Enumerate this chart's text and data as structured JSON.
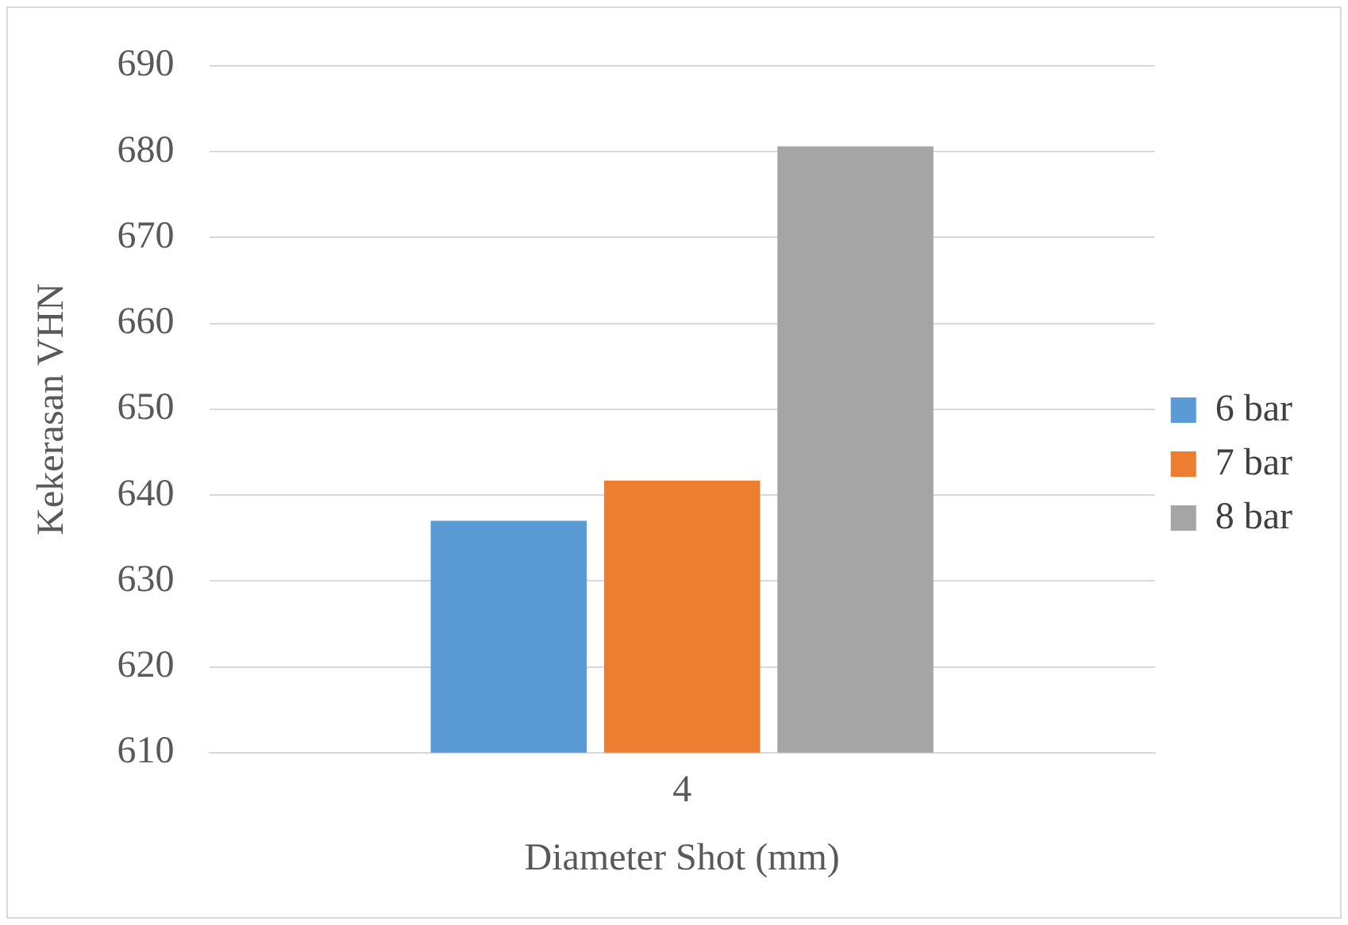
{
  "chart_data": {
    "type": "bar",
    "xlabel": "Diameter Shot (mm)",
    "ylabel": "Kekerasan VHN",
    "categories": [
      "4"
    ],
    "series": [
      {
        "name": "6 bar",
        "color": "#5b9bd5",
        "values": [
          637
        ]
      },
      {
        "name": "7 bar",
        "color": "#ed7d31",
        "values": [
          641.7
        ]
      },
      {
        "name": "8 bar",
        "color": "#a5a5a5",
        "values": [
          680.6
        ]
      }
    ],
    "ylim": [
      610,
      690
    ],
    "yticks": [
      610,
      620,
      630,
      640,
      650,
      660,
      670,
      680,
      690
    ],
    "grid": "y",
    "legend": "right"
  }
}
